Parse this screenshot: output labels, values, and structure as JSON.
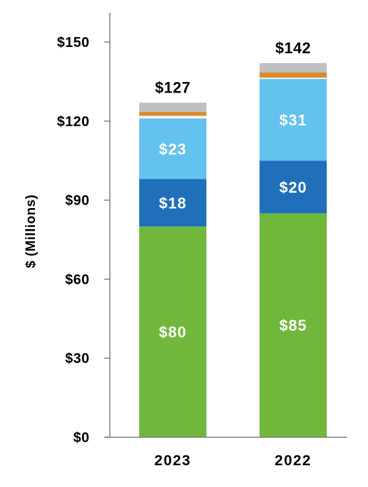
{
  "chart_data": {
    "type": "bar",
    "stacked": true,
    "title": "",
    "xlabel": "",
    "ylabel": "$ (Millions)",
    "ylim": [
      0,
      150
    ],
    "yticks": [
      0,
      30,
      60,
      90,
      120,
      150
    ],
    "ytick_labels": [
      "$0",
      "$30",
      "$60",
      "$90",
      "$120",
      "$150"
    ],
    "categories": [
      "2023",
      "2022"
    ],
    "series": [
      {
        "color": "#70b73b",
        "values": [
          80,
          85
        ],
        "labels": [
          "$80",
          "$85"
        ]
      },
      {
        "color": "#1f6fba",
        "values": [
          18,
          20
        ],
        "labels": [
          "$18",
          "$20"
        ]
      },
      {
        "color": "#64c2ee",
        "values": [
          23,
          31
        ],
        "labels": [
          "$23",
          "$31"
        ]
      },
      {
        "color": "#f4f4f4",
        "values": [
          1,
          0.5
        ],
        "labels": [
          "",
          ""
        ]
      },
      {
        "color": "#d98b2c",
        "values": [
          1.5,
          2
        ],
        "labels": [
          "",
          ""
        ]
      },
      {
        "color": "#c0c0c0",
        "values": [
          3.5,
          3.5
        ],
        "labels": [
          "",
          ""
        ]
      }
    ],
    "totals": [
      127,
      142
    ],
    "total_labels": [
      "$127",
      "$142"
    ],
    "grid": false,
    "legend": "none"
  }
}
